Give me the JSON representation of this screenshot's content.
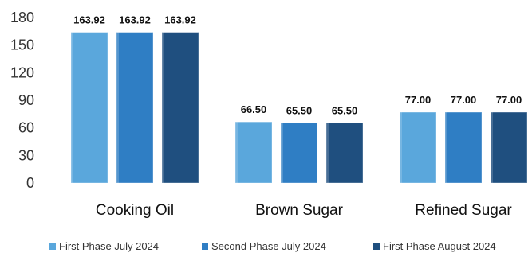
{
  "chart_data": {
    "type": "bar",
    "categories": [
      "Cooking Oil",
      "Brown Sugar",
      "Refined Sugar"
    ],
    "series": [
      {
        "name": "First Phase July 2024",
        "values": [
          163.92,
          66.5,
          77.0
        ],
        "labels": [
          "163.92",
          "66.50",
          "77.00"
        ],
        "color": "#5aa7dc"
      },
      {
        "name": "Second Phase July 2024",
        "values": [
          163.92,
          65.5,
          77.0
        ],
        "labels": [
          "163.92",
          "65.50",
          "77.00"
        ],
        "color": "#2f7ec4"
      },
      {
        "name": "First Phase August 2024",
        "values": [
          163.92,
          65.5,
          77.0
        ],
        "labels": [
          "163.92",
          "65.50",
          "77.00"
        ],
        "color": "#1f4f7f"
      }
    ],
    "y_ticks": [
      "0",
      "30",
      "60",
      "90",
      "120",
      "150",
      "180"
    ],
    "ylim": [
      0,
      180
    ],
    "grid": false,
    "legend_position": "bottom"
  }
}
